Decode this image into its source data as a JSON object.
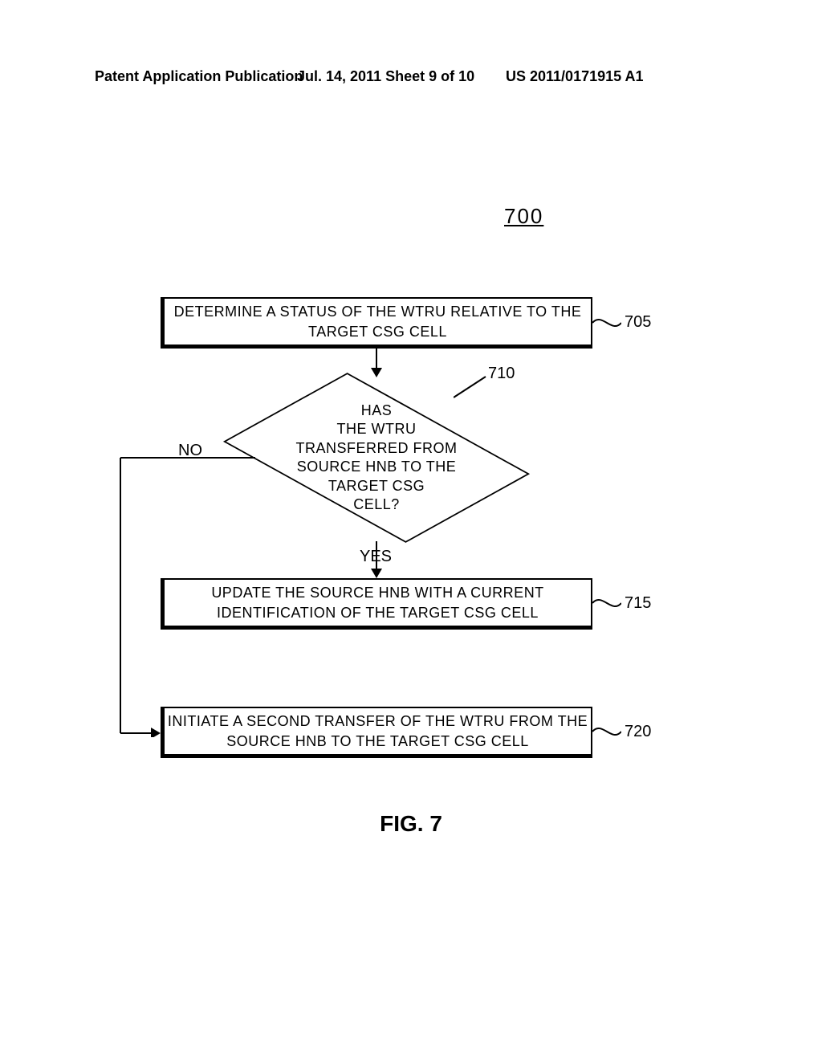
{
  "header": {
    "left": "Patent Application Publication",
    "middle": "Jul. 14, 2011  Sheet 9 of 10",
    "right": "US 2011/0171915 A1"
  },
  "figure_number": "700",
  "figure_title": "FIG. 7",
  "flowchart": {
    "type": "flowchart",
    "background_color": "#ffffff",
    "box_border_color": "#000000",
    "font_family": "Arial",
    "box1": {
      "text": "DETERMINE A STATUS OF THE WTRU RELATIVE TO THE\nTARGET CSG CELL",
      "ref": "705"
    },
    "decision": {
      "text": "HAS\nTHE WTRU\nTRANSFERRED FROM\nSOURCE HNB TO THE\nTARGET CSG\nCELL?",
      "ref": "710",
      "no_label": "NO",
      "yes_label": "YES"
    },
    "box2": {
      "text": "UPDATE THE SOURCE HNB WITH A CURRENT\nIDENTIFICATION OF THE TARGET CSG CELL",
      "ref": "715"
    },
    "box3": {
      "text": "INITIATE A SECOND TRANSFER OF THE WTRU FROM THE\nSOURCE HNB TO THE TARGET CSG CELL",
      "ref": "720"
    }
  }
}
